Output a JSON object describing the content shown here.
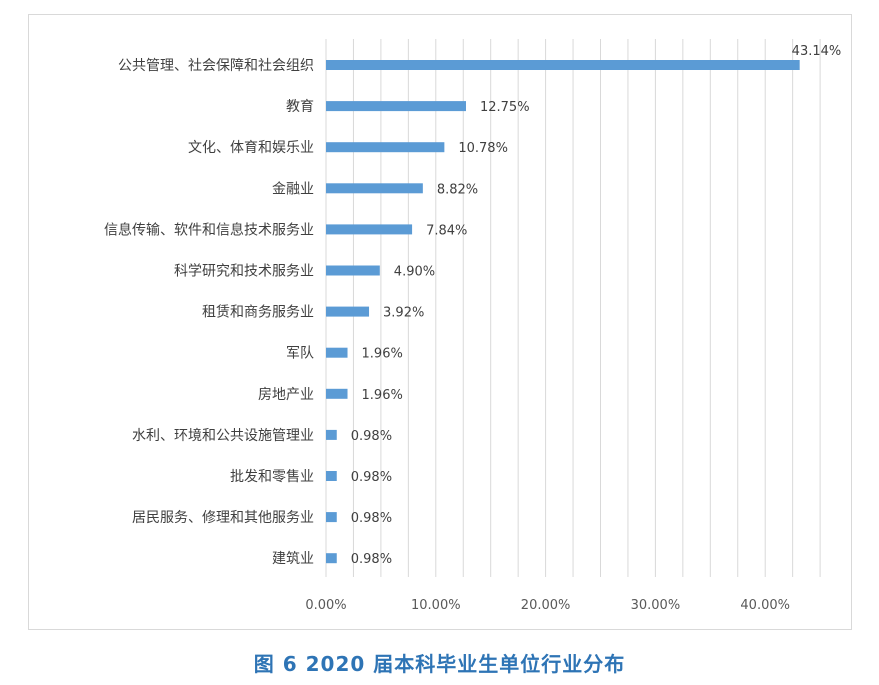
{
  "chart_data": {
    "type": "bar",
    "orientation": "horizontal",
    "title": "",
    "xlabel": "",
    "ylabel": "",
    "xlim": [
      0,
      45
    ],
    "x_ticks": [
      0,
      10,
      20,
      30,
      40
    ],
    "x_tick_labels": [
      "0.00%",
      "10.00%",
      "20.00%",
      "30.00%",
      "40.00%"
    ],
    "grid": "vertical",
    "categories": [
      "公共管理、社会保障和社会组织",
      "教育",
      "文化、体育和娱乐业",
      "金融业",
      "信息传输、软件和信息技术服务业",
      "科学研究和技术服务业",
      "租赁和商务服务业",
      "军队",
      "房地产业",
      "水利、环境和公共设施管理业",
      "批发和零售业",
      "居民服务、修理和其他服务业",
      "建筑业"
    ],
    "values": [
      43.14,
      12.75,
      10.78,
      8.82,
      7.84,
      4.9,
      3.92,
      1.96,
      1.96,
      0.98,
      0.98,
      0.98,
      0.98
    ],
    "value_labels": [
      "43.14%",
      "12.75%",
      "10.78%",
      "8.82%",
      "7.84%",
      "4.90%",
      "3.92%",
      "1.96%",
      "1.96%",
      "0.98%",
      "0.98%",
      "0.98%",
      "0.98%"
    ],
    "bar_color": "#5b9bd5",
    "grid_color": "#d9d9d9"
  },
  "caption": "图 6   2020 届本科毕业生单位行业分布"
}
